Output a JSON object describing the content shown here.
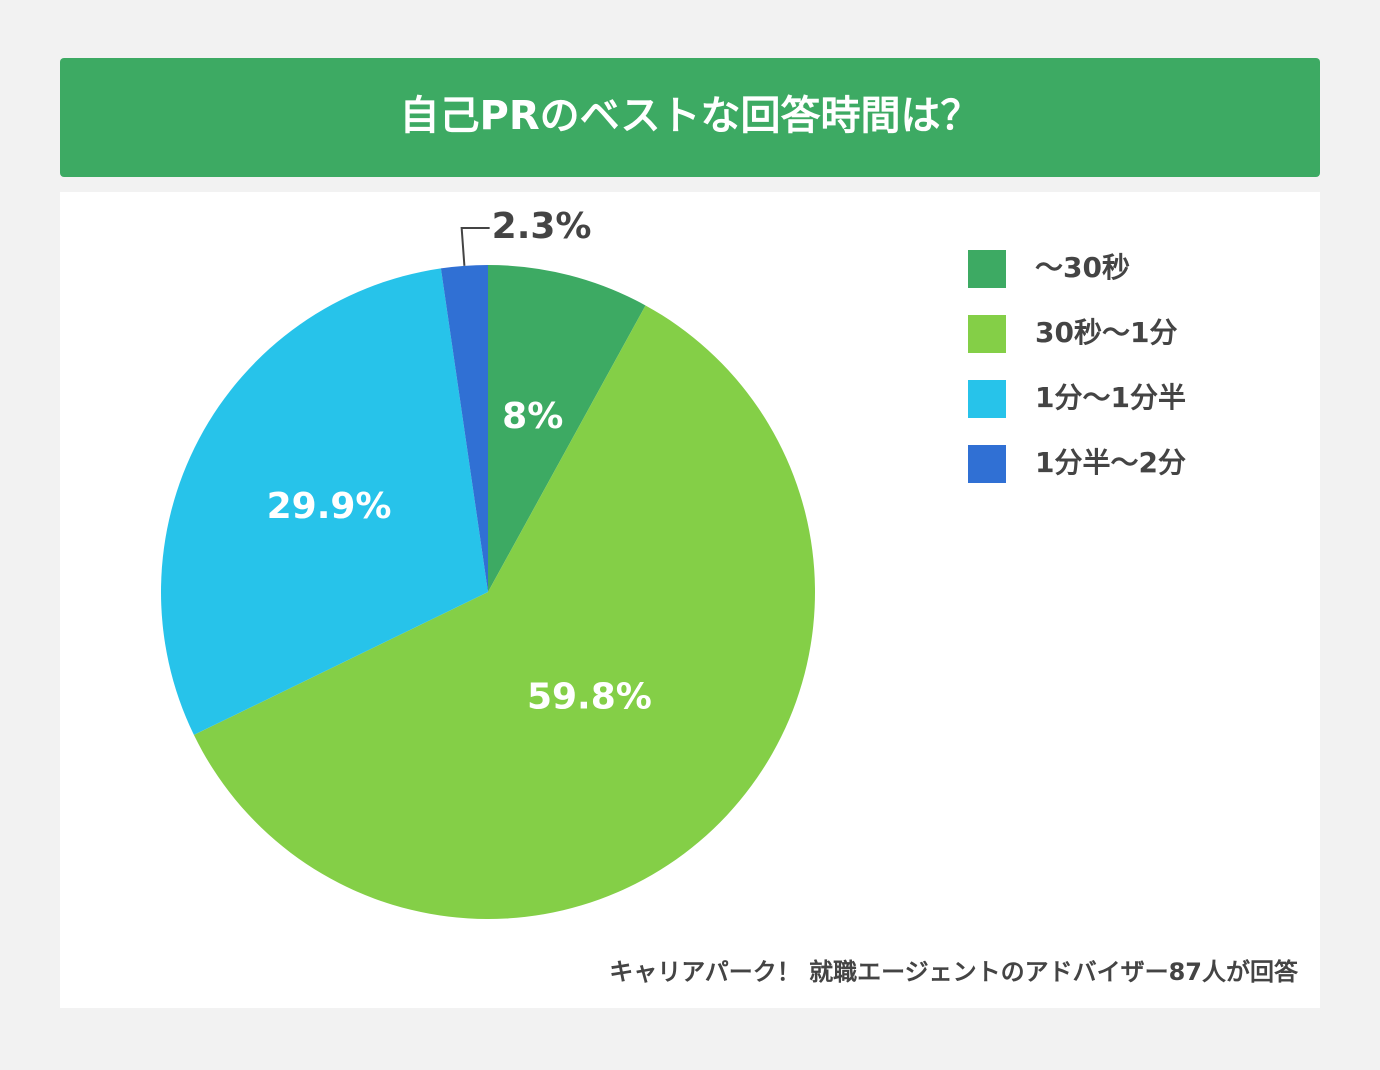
{
  "chart_data": {
    "type": "pie",
    "title": "自己PRのベストな回答時間は？",
    "categories": [
      "〜30秒",
      "30秒〜1分",
      "1分〜1分半",
      "1分半〜2分"
    ],
    "values": [
      8,
      59.8,
      29.9,
      2.3
    ],
    "value_labels": [
      "8%",
      "59.8%",
      "29.9%",
      "2.3%"
    ],
    "colors": [
      "#3daa63",
      "#84cf47",
      "#27c3ea",
      "#3070d4"
    ],
    "legend": "right",
    "source": "キャリアパーク！ 就職エージェントのアドバイザー87人が回答"
  }
}
